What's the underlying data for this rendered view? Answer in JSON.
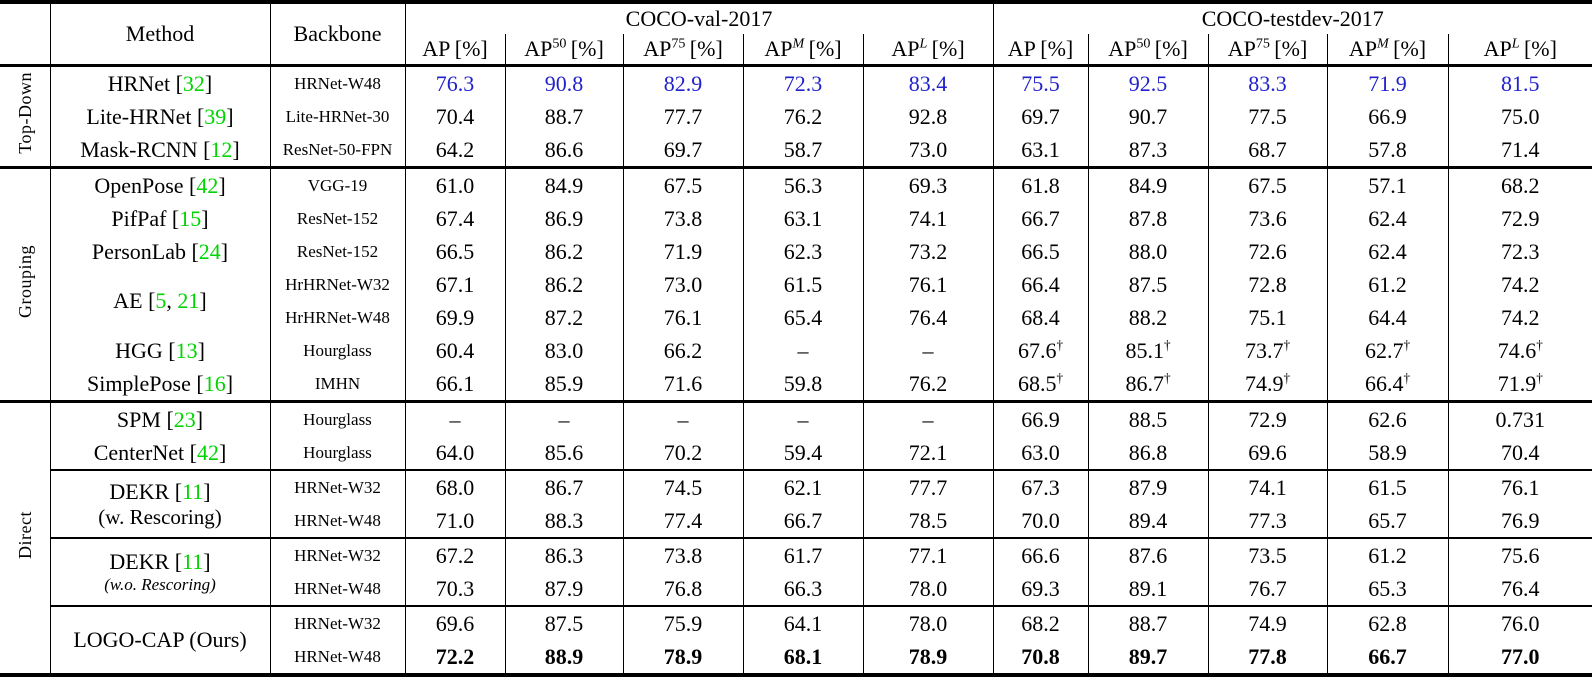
{
  "table": {
    "colors": {
      "citation_green": "#00d400",
      "highlight_blue": "#2222cc"
    },
    "header": {
      "method": "Method",
      "backbone": "Backbone",
      "groups": [
        {
          "label": "COCO-val-2017"
        },
        {
          "label": "COCO-testdev-2017"
        }
      ],
      "metrics": [
        {
          "base": "AP",
          "sup": "",
          "italic": false,
          "rest": " [%]"
        },
        {
          "base": "AP",
          "sup": "50",
          "italic": false,
          "rest": " [%]"
        },
        {
          "base": "AP",
          "sup": "75",
          "italic": false,
          "rest": " [%]"
        },
        {
          "base": "AP",
          "sup": "M",
          "italic": true,
          "rest": " [%]"
        },
        {
          "base": "AP",
          "sup": "L",
          "italic": true,
          "rest": " [%]"
        }
      ]
    },
    "sections": [
      {
        "label": "Top-Down",
        "subsections": [
          {
            "rows": [
              {
                "method": {
                  "name": "HRNet",
                  "cites": [
                    "32"
                  ]
                },
                "backbone": "HRNet-W48",
                "val": [
                  "76.3",
                  "90.8",
                  "82.9",
                  "72.3",
                  "83.4"
                ],
                "testdev": [
                  "75.5",
                  "92.5",
                  "83.3",
                  "71.9",
                  "81.5"
                ],
                "blue": true
              },
              {
                "method": {
                  "name": "Lite-HRNet",
                  "cites": [
                    "39"
                  ]
                },
                "backbone": "Lite-HRNet-30",
                "val": [
                  "70.4",
                  "88.7",
                  "77.7",
                  "76.2",
                  "92.8"
                ],
                "testdev": [
                  "69.7",
                  "90.7",
                  "77.5",
                  "66.9",
                  "75.0"
                ]
              },
              {
                "method": {
                  "name": "Mask-RCNN",
                  "cites": [
                    "12"
                  ]
                },
                "backbone": "ResNet-50-FPN",
                "val": [
                  "64.2",
                  "86.6",
                  "69.7",
                  "58.7",
                  "73.0"
                ],
                "testdev": [
                  "63.1",
                  "87.3",
                  "68.7",
                  "57.8",
                  "71.4"
                ]
              }
            ]
          }
        ]
      },
      {
        "label": "Grouping",
        "subsections": [
          {
            "rows": [
              {
                "method": {
                  "name": "OpenPose",
                  "cites": [
                    "42"
                  ]
                },
                "backbone": "VGG-19",
                "val": [
                  "61.0",
                  "84.9",
                  "67.5",
                  "56.3",
                  "69.3"
                ],
                "testdev": [
                  "61.8",
                  "84.9",
                  "67.5",
                  "57.1",
                  "68.2"
                ]
              },
              {
                "method": {
                  "name": "PifPaf",
                  "cites": [
                    "15"
                  ]
                },
                "backbone": "ResNet-152",
                "val": [
                  "67.4",
                  "86.9",
                  "73.8",
                  "63.1",
                  "74.1"
                ],
                "testdev": [
                  "66.7",
                  "87.8",
                  "73.6",
                  "62.4",
                  "72.9"
                ]
              },
              {
                "method": {
                  "name": "PersonLab",
                  "cites": [
                    "24"
                  ]
                },
                "backbone": "ResNet-152",
                "val": [
                  "66.5",
                  "86.2",
                  "71.9",
                  "62.3",
                  "73.2"
                ],
                "testdev": [
                  "66.5",
                  "88.0",
                  "72.6",
                  "62.4",
                  "72.3"
                ]
              },
              {
                "method": {
                  "name": "AE",
                  "cites": [
                    "5",
                    "21"
                  ]
                },
                "rowspan": 2,
                "backbone": "HrHRNet-W32",
                "val": [
                  "67.1",
                  "86.2",
                  "73.0",
                  "61.5",
                  "76.1"
                ],
                "testdev": [
                  "66.4",
                  "87.5",
                  "72.8",
                  "61.2",
                  "74.2"
                ]
              },
              {
                "backbone": "HrHRNet-W48",
                "val": [
                  "69.9",
                  "87.2",
                  "76.1",
                  "65.4",
                  "76.4"
                ],
                "testdev": [
                  "68.4",
                  "88.2",
                  "75.1",
                  "64.4",
                  "74.2"
                ]
              },
              {
                "method": {
                  "name": "HGG",
                  "cites": [
                    "13"
                  ]
                },
                "backbone": "Hourglass",
                "val": [
                  "60.4",
                  "83.0",
                  "66.2",
                  "–",
                  "–"
                ],
                "testdev": [
                  "67.6",
                  "85.1",
                  "73.7",
                  "62.7",
                  "74.6"
                ],
                "dagger": true
              },
              {
                "method": {
                  "name": "SimplePose",
                  "cites": [
                    "16"
                  ]
                },
                "backbone": "IMHN",
                "val": [
                  "66.1",
                  "85.9",
                  "71.6",
                  "59.8",
                  "76.2"
                ],
                "testdev": [
                  "68.5",
                  "86.7",
                  "74.9",
                  "66.4",
                  "71.9"
                ],
                "dagger": true
              }
            ]
          }
        ]
      },
      {
        "label": "Direct",
        "subsections": [
          {
            "rows": [
              {
                "method": {
                  "name": "SPM",
                  "cites": [
                    "23"
                  ]
                },
                "backbone": "Hourglass",
                "val": [
                  "–",
                  "–",
                  "–",
                  "–",
                  "–"
                ],
                "testdev": [
                  "66.9",
                  "88.5",
                  "72.9",
                  "62.6",
                  "0.731"
                ]
              },
              {
                "method": {
                  "name": "CenterNet",
                  "cites": [
                    "42"
                  ]
                },
                "backbone": "Hourglass",
                "val": [
                  "64.0",
                  "85.6",
                  "70.2",
                  "59.4",
                  "72.1"
                ],
                "testdev": [
                  "63.0",
                  "86.8",
                  "69.6",
                  "58.9",
                  "70.4"
                ]
              }
            ]
          },
          {
            "rows": [
              {
                "method": {
                  "name": "DEKR",
                  "cites": [
                    "11"
                  ],
                  "line2": "(w. Rescoring)",
                  "line2_italic": false
                },
                "rowspan": 2,
                "backbone": "HRNet-W32",
                "val": [
                  "68.0",
                  "86.7",
                  "74.5",
                  "62.1",
                  "77.7"
                ],
                "testdev": [
                  "67.3",
                  "87.9",
                  "74.1",
                  "61.5",
                  "76.1"
                ]
              },
              {
                "backbone": "HRNet-W48",
                "val": [
                  "71.0",
                  "88.3",
                  "77.4",
                  "66.7",
                  "78.5"
                ],
                "testdev": [
                  "70.0",
                  "89.4",
                  "77.3",
                  "65.7",
                  "76.9"
                ]
              }
            ]
          },
          {
            "rows": [
              {
                "method": {
                  "name": "DEKR",
                  "cites": [
                    "11"
                  ],
                  "line2": "(w.o. Rescoring)",
                  "line2_italic": true
                },
                "rowspan": 2,
                "backbone": "HRNet-W32",
                "val": [
                  "67.2",
                  "86.3",
                  "73.8",
                  "61.7",
                  "77.1"
                ],
                "testdev": [
                  "66.6",
                  "87.6",
                  "73.5",
                  "61.2",
                  "75.6"
                ]
              },
              {
                "backbone": "HRNet-W48",
                "val": [
                  "70.3",
                  "87.9",
                  "76.8",
                  "66.3",
                  "78.0"
                ],
                "testdev": [
                  "69.3",
                  "89.1",
                  "76.7",
                  "65.3",
                  "76.4"
                ]
              }
            ]
          },
          {
            "rows": [
              {
                "method": {
                  "name": "LOGO-CAP (Ours)",
                  "cites": []
                },
                "rowspan": 2,
                "backbone": "HRNet-W32",
                "val": [
                  "69.6",
                  "87.5",
                  "75.9",
                  "64.1",
                  "78.0"
                ],
                "testdev": [
                  "68.2",
                  "88.7",
                  "74.9",
                  "62.8",
                  "76.0"
                ]
              },
              {
                "backbone": "HRNet-W48",
                "val": [
                  "72.2",
                  "88.9",
                  "78.9",
                  "68.1",
                  "78.9"
                ],
                "testdev": [
                  "70.8",
                  "89.7",
                  "77.8",
                  "66.7",
                  "77.0"
                ],
                "bold": true
              }
            ]
          }
        ]
      }
    ]
  }
}
